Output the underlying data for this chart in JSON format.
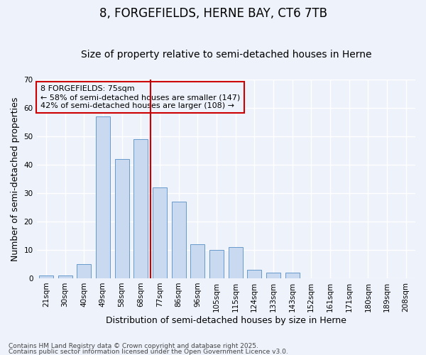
{
  "title": "8, FORGEFIELDS, HERNE BAY, CT6 7TB",
  "subtitle": "Size of property relative to semi-detached houses in Herne",
  "xlabel": "Distribution of semi-detached houses by size in Herne",
  "ylabel": "Number of semi-detached properties",
  "categories": [
    "21sqm",
    "30sqm",
    "40sqm",
    "49sqm",
    "58sqm",
    "68sqm",
    "77sqm",
    "86sqm",
    "96sqm",
    "105sqm",
    "115sqm",
    "124sqm",
    "133sqm",
    "143sqm",
    "152sqm",
    "161sqm",
    "171sqm",
    "180sqm",
    "189sqm",
    "208sqm"
  ],
  "values": [
    1,
    1,
    5,
    57,
    42,
    49,
    32,
    27,
    12,
    10,
    11,
    3,
    2,
    2,
    0,
    0,
    0,
    0,
    0,
    0
  ],
  "bar_color": "#c8d9f0",
  "bar_edge_color": "#6699cc",
  "background_color": "#eef2fb",
  "plot_bg_color": "#eef2fb",
  "grid_color": "#ffffff",
  "vline_color": "#cc0000",
  "vline_position": 6,
  "annotation_text": "8 FORGEFIELDS: 75sqm\n← 58% of semi-detached houses are smaller (147)\n42% of semi-detached houses are larger (108) →",
  "annotation_box_color": "#cc0000",
  "ylim": [
    0,
    70
  ],
  "yticks": [
    0,
    10,
    20,
    30,
    40,
    50,
    60,
    70
  ],
  "footer1": "Contains HM Land Registry data © Crown copyright and database right 2025.",
  "footer2": "Contains public sector information licensed under the Open Government Licence v3.0.",
  "title_fontsize": 12,
  "subtitle_fontsize": 10,
  "label_fontsize": 9,
  "tick_fontsize": 7.5,
  "footer_fontsize": 6.5,
  "bar_width": 0.75
}
